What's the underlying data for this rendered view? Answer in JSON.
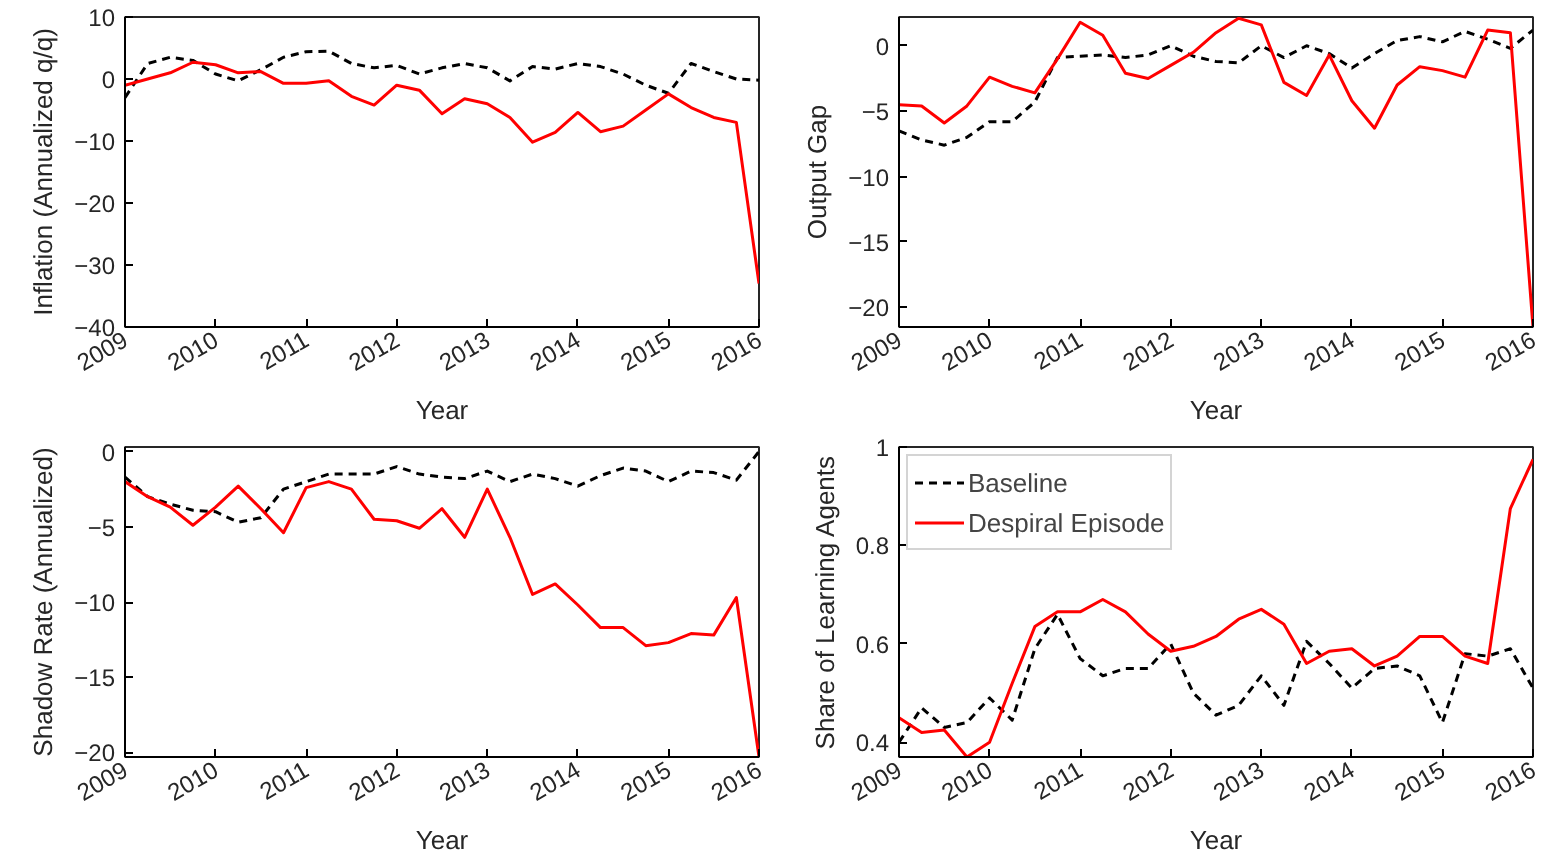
{
  "chart_data": [
    {
      "type": "line",
      "xlabel": "Year",
      "ylabel": "Inflation (Annualized q/q)",
      "x": [
        2009,
        2009.25,
        2009.5,
        2009.75,
        2010,
        2010.25,
        2010.5,
        2010.75,
        2011,
        2011.25,
        2011.5,
        2011.75,
        2012,
        2012.25,
        2012.5,
        2012.75,
        2013,
        2013.25,
        2013.5,
        2013.75,
        2014,
        2014.25,
        2014.5,
        2014.75,
        2015,
        2015.25,
        2015.5,
        2015.75,
        2016
      ],
      "xlim": [
        2009,
        2016
      ],
      "xticks": [
        2009,
        2010,
        2011,
        2012,
        2013,
        2014,
        2015,
        2016
      ],
      "ylim": [
        -40,
        10
      ],
      "yticks": [
        -40,
        -30,
        -20,
        -10,
        0,
        10
      ],
      "grid": false,
      "legend": false,
      "series": [
        {
          "color": "#000000",
          "line_style": "dashed",
          "values": [
            -3,
            2.5,
            3.5,
            3,
            0.8,
            -0.3,
            1.5,
            3.5,
            4.4,
            4.5,
            2.5,
            1.8,
            2.2,
            0.8,
            1.8,
            2.5,
            1.8,
            -0.3,
            2,
            1.6,
            2.5,
            2,
            0.8,
            -1,
            -2.3,
            2.5,
            1.2,
            0,
            -0.2
          ]
        },
        {
          "color": "#ff0000",
          "line_style": "solid",
          "values": [
            -1,
            0,
            1,
            2.7,
            2.3,
            1,
            1.2,
            -0.7,
            -0.7,
            -0.3,
            -2.8,
            -4.2,
            -1,
            -1.8,
            -5.6,
            -3.2,
            -4,
            -6.2,
            -10.2,
            -8.6,
            -5.4,
            -8.5,
            -7.6,
            -5,
            -2.4,
            -4.6,
            -6.2,
            -7,
            -33
          ]
        }
      ]
    },
    {
      "type": "line",
      "xlabel": "Year",
      "ylabel": "Output Gap",
      "x": [
        2009,
        2009.25,
        2009.5,
        2009.75,
        2010,
        2010.25,
        2010.5,
        2010.75,
        2011,
        2011.25,
        2011.5,
        2011.75,
        2012,
        2012.25,
        2012.5,
        2012.75,
        2013,
        2013.25,
        2013.5,
        2013.75,
        2014,
        2014.25,
        2014.5,
        2014.75,
        2015,
        2015.25,
        2015.5,
        2015.75,
        2016
      ],
      "xlim": [
        2009,
        2016
      ],
      "xticks": [
        2009,
        2010,
        2011,
        2012,
        2013,
        2014,
        2015,
        2016
      ],
      "ylim": [
        -21.5,
        2.2
      ],
      "yticks": [
        -20,
        -15,
        -10,
        -5,
        0
      ],
      "grid": false,
      "legend": false,
      "series": [
        {
          "color": "#000000",
          "line_style": "dashed",
          "values": [
            -6.5,
            -7.2,
            -7.6,
            -7,
            -5.8,
            -5.8,
            -4.3,
            -0.9,
            -0.8,
            -0.7,
            -0.9,
            -0.7,
            0,
            -0.8,
            -1.2,
            -1.3,
            0,
            -0.9,
            0,
            -0.6,
            -1.7,
            -0.6,
            0.4,
            0.7,
            0.3,
            1.1,
            0.5,
            -0.2,
            1.2
          ]
        },
        {
          "color": "#ff0000",
          "line_style": "solid",
          "values": [
            -4.5,
            -4.6,
            -5.9,
            -4.6,
            -2.4,
            -3.1,
            -3.6,
            -1,
            1.8,
            0.8,
            -2.1,
            -2.5,
            -1.5,
            -0.5,
            1,
            2.1,
            1.6,
            -2.8,
            -3.8,
            -0.7,
            -4.2,
            -6.3,
            -3,
            -1.6,
            -1.9,
            -2.4,
            1.2,
            1,
            -21.5
          ]
        }
      ]
    },
    {
      "type": "line",
      "xlabel": "Year",
      "ylabel": "Shadow Rate (Annualized)",
      "x": [
        2009,
        2009.25,
        2009.5,
        2009.75,
        2010,
        2010.25,
        2010.5,
        2010.75,
        2011,
        2011.25,
        2011.5,
        2011.75,
        2012,
        2012.25,
        2012.5,
        2012.75,
        2013,
        2013.25,
        2013.5,
        2013.75,
        2014,
        2014.25,
        2014.5,
        2014.75,
        2015,
        2015.25,
        2015.5,
        2015.75,
        2016
      ],
      "xlim": [
        2009,
        2016
      ],
      "xticks": [
        2009,
        2010,
        2011,
        2012,
        2013,
        2014,
        2015,
        2016
      ],
      "ylim": [
        -20.3,
        0.3
      ],
      "yticks": [
        -20,
        -15,
        -10,
        -5,
        0
      ],
      "grid": false,
      "legend": false,
      "series": [
        {
          "color": "#000000",
          "line_style": "dashed",
          "values": [
            -1.7,
            -3,
            -3.5,
            -3.9,
            -4,
            -4.7,
            -4.4,
            -2.5,
            -2,
            -1.5,
            -1.5,
            -1.5,
            -1,
            -1.5,
            -1.7,
            -1.8,
            -1.3,
            -2,
            -1.5,
            -1.8,
            -2.3,
            -1.6,
            -1.1,
            -1.3,
            -2,
            -1.3,
            -1.4,
            -1.9,
            0
          ]
        },
        {
          "color": "#ff0000",
          "line_style": "solid",
          "values": [
            -2,
            -3,
            -3.7,
            -4.9,
            -3.7,
            -2.3,
            -3.8,
            -5.4,
            -2.4,
            -2,
            -2.5,
            -4.5,
            -4.6,
            -5.1,
            -3.8,
            -5.7,
            -2.5,
            -5.7,
            -9.5,
            -8.8,
            -10.2,
            -11.7,
            -11.7,
            -12.9,
            -12.7,
            -12.1,
            -12.2,
            -9.7,
            -20.3
          ]
        }
      ]
    },
    {
      "type": "line",
      "xlabel": "Year",
      "ylabel": "Share of Learning Agents",
      "x": [
        2009,
        2009.25,
        2009.5,
        2009.75,
        2010,
        2010.25,
        2010.5,
        2010.75,
        2011,
        2011.25,
        2011.5,
        2011.75,
        2012,
        2012.25,
        2012.5,
        2012.75,
        2013,
        2013.25,
        2013.5,
        2013.75,
        2014,
        2014.25,
        2014.5,
        2014.75,
        2015,
        2015.25,
        2015.5,
        2015.75,
        2016
      ],
      "xlim": [
        2009,
        2016
      ],
      "xticks": [
        2009,
        2010,
        2011,
        2012,
        2013,
        2014,
        2015,
        2016
      ],
      "ylim": [
        0.37,
        1
      ],
      "yticks": [
        0.4,
        0.6,
        0.8,
        1
      ],
      "grid": false,
      "legend": "top left",
      "series": [
        {
          "name": "Baseline",
          "color": "#000000",
          "line_style": "dashed",
          "values": [
            0.4,
            0.47,
            0.43,
            0.44,
            0.49,
            0.445,
            0.59,
            0.66,
            0.57,
            0.535,
            0.55,
            0.55,
            0.6,
            0.5,
            0.455,
            0.475,
            0.535,
            0.475,
            0.605,
            0.56,
            0.51,
            0.55,
            0.555,
            0.535,
            0.44,
            0.58,
            0.575,
            0.59,
            0.51
          ]
        },
        {
          "name": "Despiral Episode",
          "color": "#ff0000",
          "line_style": "solid",
          "values": [
            0.45,
            0.42,
            0.425,
            0.37,
            0.4,
            0.52,
            0.635,
            0.665,
            0.665,
            0.69,
            0.665,
            0.62,
            0.585,
            0.595,
            0.615,
            0.65,
            0.67,
            0.64,
            0.56,
            0.585,
            0.59,
            0.555,
            0.575,
            0.615,
            0.615,
            0.575,
            0.56,
            0.875,
            0.975
          ]
        }
      ]
    }
  ]
}
